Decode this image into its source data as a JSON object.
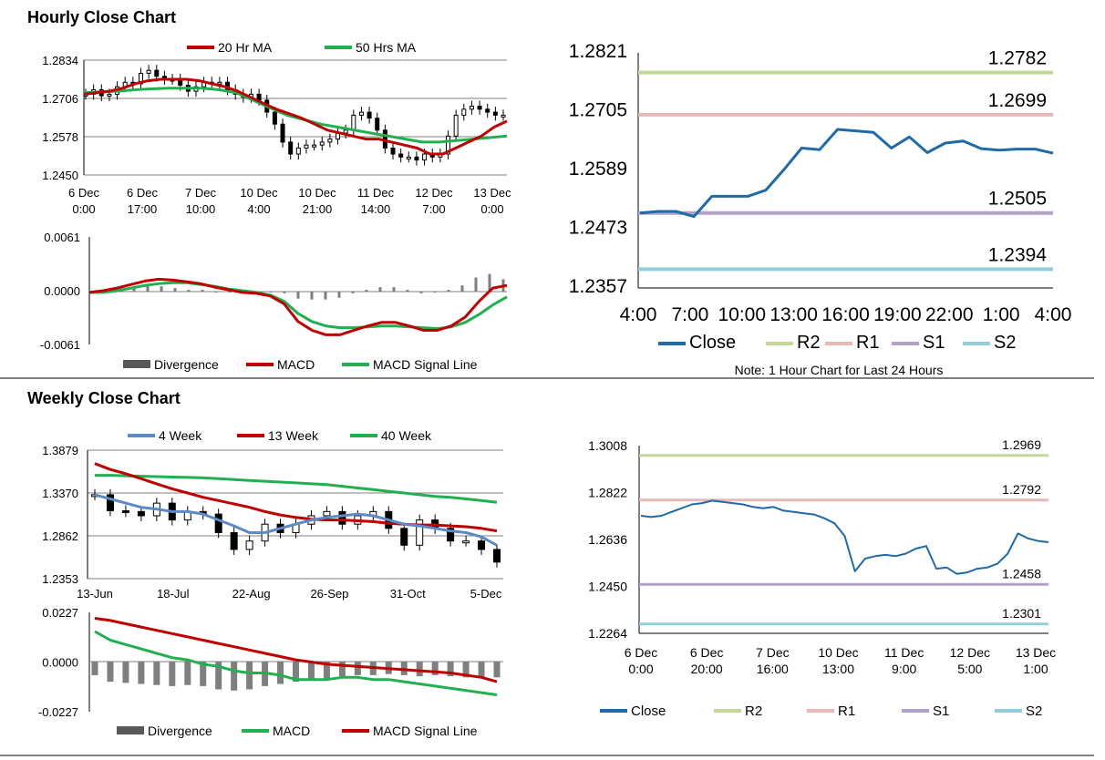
{
  "hourly_title": "Hourly Close Chart",
  "weekly_title": "Weekly Close Chart",
  "colors": {
    "ma20": "#c00000",
    "ma50": "#20b050",
    "price": "#000000",
    "close": "#1f6aa8",
    "r2": "#c4d79b",
    "r1": "#e6b9b8",
    "s1": "#b3a2c7",
    "s2": "#93cddd",
    "divergence": "#595959",
    "week4": "#5b8ac6",
    "week13": "#c00000",
    "week40": "#20b050",
    "grid": "#808080"
  },
  "chart_data": [
    {
      "id": "hourly_price",
      "type": "candlestick",
      "legend": [
        "20 Hr MA",
        "50 Hrs MA"
      ],
      "ylim": [
        1.245,
        1.2834
      ],
      "yticks": [
        "1.2834",
        "1.2706",
        "1.2578",
        "1.2450"
      ],
      "xticks": [
        [
          "6 Dec",
          "0:00"
        ],
        [
          "6 Dec",
          "17:00"
        ],
        [
          "7 Dec",
          "10:00"
        ],
        [
          "10 Dec",
          "4:00"
        ],
        [
          "10 Dec",
          "21:00"
        ],
        [
          "11 Dec",
          "14:00"
        ],
        [
          "12 Dec",
          "7:00"
        ],
        [
          "13 Dec",
          "0:00"
        ]
      ],
      "close": [
        1.272,
        1.2735,
        1.2715,
        1.272,
        1.2745,
        1.276,
        1.2755,
        1.279,
        1.28,
        1.278,
        1.277,
        1.277,
        1.275,
        1.273,
        1.2745,
        1.276,
        1.2755,
        1.276,
        1.2735,
        1.272,
        1.271,
        1.272,
        1.27,
        1.266,
        1.262,
        1.256,
        1.252,
        1.254,
        1.255,
        1.255,
        1.256,
        1.257,
        1.259,
        1.26,
        1.265,
        1.266,
        1.264,
        1.26,
        1.254,
        1.252,
        1.251,
        1.251,
        1.25,
        1.252,
        1.251,
        1.252,
        1.258,
        1.265,
        1.267,
        1.268,
        1.267,
        1.266,
        1.265,
        1.265
      ],
      "ma20": [
        1.272,
        1.2725,
        1.273,
        1.274,
        1.2755,
        1.2765,
        1.277,
        1.277,
        1.277,
        1.2765,
        1.2755,
        1.2745,
        1.273,
        1.271,
        1.269,
        1.267,
        1.2655,
        1.264,
        1.262,
        1.26,
        1.259,
        1.258,
        1.257,
        1.257,
        1.256,
        1.255,
        1.254,
        1.252,
        1.252,
        1.254,
        1.256,
        1.258,
        1.261,
        1.263
      ],
      "ma50": [
        1.2725,
        1.2728,
        1.273,
        1.2735,
        1.2738,
        1.274,
        1.274,
        1.274,
        1.2735,
        1.2725,
        1.27,
        1.2675,
        1.265,
        1.2635,
        1.262,
        1.261,
        1.26,
        1.259,
        1.258,
        1.257,
        1.256,
        1.256,
        1.2565,
        1.257,
        1.2575,
        1.258
      ]
    },
    {
      "id": "hourly_macd",
      "type": "macd",
      "legend": [
        "Divergence",
        "MACD",
        "MACD Signal Line"
      ],
      "ylim": [
        -0.0061,
        0.0061
      ],
      "yticks": [
        "0.0061",
        "0.0000",
        "-0.0061"
      ],
      "macd": [
        -0.0002,
        0.0,
        0.0003,
        0.0007,
        0.0011,
        0.0013,
        0.0012,
        0.001,
        0.0008,
        0.0004,
        0.0001,
        -0.0002,
        -0.0003,
        -0.0006,
        -0.0015,
        -0.0035,
        -0.0045,
        -0.005,
        -0.005,
        -0.0045,
        -0.004,
        -0.0036,
        -0.0036,
        -0.004,
        -0.0045,
        -0.0045,
        -0.004,
        -0.003,
        -0.0012,
        0.0003,
        0.0006
      ],
      "signal": [
        -0.0002,
        -0.0002,
        0.0,
        0.0003,
        0.0006,
        0.0008,
        0.0009,
        0.0009,
        0.0007,
        0.0005,
        0.0002,
        0.0,
        -0.0002,
        -0.0005,
        -0.0012,
        -0.0026,
        -0.0035,
        -0.004,
        -0.0042,
        -0.0042,
        -0.0041,
        -0.004,
        -0.004,
        -0.0041,
        -0.0042,
        -0.0043,
        -0.0041,
        -0.0036,
        -0.0027,
        -0.0016,
        -0.0007
      ]
    },
    {
      "id": "hourly_24h",
      "type": "line",
      "legend": [
        "Close",
        "R2",
        "R1",
        "S1",
        "S2"
      ],
      "ylim": [
        1.2357,
        1.2821
      ],
      "yticks": [
        "1.2821",
        "1.2705",
        "1.2589",
        "1.2473",
        "1.2357"
      ],
      "xticks": [
        "4:00",
        "7:00",
        "10:00",
        "13:00",
        "16:00",
        "19:00",
        "22:00",
        "1:00",
        "4:00"
      ],
      "levels": {
        "R2": "1.2782",
        "R1": "1.2699",
        "S1": "1.2505",
        "S2": "1.2394"
      },
      "close": [
        1.2505,
        1.2508,
        1.2508,
        1.2498,
        1.2538,
        1.2538,
        1.2538,
        1.255,
        1.259,
        1.2633,
        1.263,
        1.267,
        1.2667,
        1.2664,
        1.2633,
        1.2655,
        1.2624,
        1.2643,
        1.2647,
        1.2632,
        1.2629,
        1.2631,
        1.2631,
        1.2623
      ],
      "note": "Note: 1 Hour Chart for Last 24 Hours"
    },
    {
      "id": "weekly_price",
      "type": "candlestick",
      "legend": [
        "4 Week",
        "13 Week",
        "40 Week"
      ],
      "ylim": [
        1.2353,
        1.3879
      ],
      "yticks": [
        "1.3879",
        "1.3370",
        "1.2862",
        "1.2353"
      ],
      "xticks": [
        "13-Jun",
        "18-Jul",
        "22-Aug",
        "26-Sep",
        "31-Oct",
        "5-Dec"
      ],
      "close": [
        1.335,
        1.316,
        1.315,
        1.31,
        1.325,
        1.305,
        1.315,
        1.312,
        1.29,
        1.27,
        1.28,
        1.3,
        1.29,
        1.3,
        1.31,
        1.315,
        1.3,
        1.31,
        1.315,
        1.295,
        1.275,
        1.305,
        1.295,
        1.28,
        1.28,
        1.27,
        1.255
      ],
      "week4": [
        1.335,
        1.33,
        1.325,
        1.32,
        1.318,
        1.315,
        1.315,
        1.312,
        1.305,
        1.298,
        1.29,
        1.29,
        1.295,
        1.3,
        1.305,
        1.308,
        1.31,
        1.312,
        1.31,
        1.305,
        1.3,
        1.298,
        1.295,
        1.292,
        1.29,
        1.285,
        1.275
      ],
      "week13": [
        1.372,
        1.365,
        1.36,
        1.354,
        1.348,
        1.342,
        1.337,
        1.332,
        1.328,
        1.324,
        1.32,
        1.315,
        1.311,
        1.308,
        1.306,
        1.305,
        1.305,
        1.304,
        1.303,
        1.301,
        1.3,
        1.299,
        1.299,
        1.298,
        1.297,
        1.295,
        1.292
      ],
      "week40": [
        1.358,
        1.358,
        1.3575,
        1.357,
        1.3565,
        1.356,
        1.3555,
        1.355,
        1.354,
        1.353,
        1.352,
        1.351,
        1.35,
        1.349,
        1.348,
        1.347,
        1.345,
        1.343,
        1.341,
        1.339,
        1.337,
        1.335,
        1.333,
        1.332,
        1.33,
        1.328,
        1.326
      ]
    },
    {
      "id": "weekly_macd",
      "type": "macd",
      "legend": [
        "Divergence",
        "MACD",
        "MACD Signal Line"
      ],
      "ylim": [
        -0.0227,
        0.0227
      ],
      "yticks": [
        "0.0227",
        "0.0000",
        "-0.0227"
      ],
      "macd": [
        0.014,
        0.01,
        0.008,
        0.006,
        0.004,
        0.002,
        0.001,
        -0.001,
        -0.002,
        -0.004,
        -0.005,
        -0.005,
        -0.006,
        -0.008,
        -0.008,
        -0.008,
        -0.007,
        -0.007,
        -0.008,
        -0.008,
        -0.009,
        -0.01,
        -0.011,
        -0.012,
        -0.013,
        -0.014,
        -0.015
      ],
      "signal": [
        0.02,
        0.019,
        0.0175,
        0.016,
        0.0145,
        0.013,
        0.0115,
        0.01,
        0.0085,
        0.007,
        0.0055,
        0.004,
        0.0025,
        0.001,
        0.0,
        -0.001,
        -0.0015,
        -0.002,
        -0.0025,
        -0.003,
        -0.0035,
        -0.004,
        -0.0045,
        -0.005,
        -0.006,
        -0.007,
        -0.009
      ],
      "divergence": [
        -0.006,
        -0.009,
        -0.0095,
        -0.01,
        -0.0105,
        -0.011,
        -0.0105,
        -0.011,
        -0.0125,
        -0.013,
        -0.0125,
        -0.011,
        -0.01,
        -0.009,
        -0.0085,
        -0.0075,
        -0.0065,
        -0.006,
        -0.006,
        -0.0055,
        -0.006,
        -0.0065,
        -0.006,
        -0.0065,
        -0.007,
        -0.007,
        -0.007
      ]
    },
    {
      "id": "hourly_week",
      "type": "line",
      "legend": [
        "Close",
        "R2",
        "R1",
        "S1",
        "S2"
      ],
      "ylim": [
        1.2264,
        1.3008
      ],
      "yticks": [
        "1.3008",
        "1.2822",
        "1.2636",
        "1.2450",
        "1.2264"
      ],
      "xticks": [
        [
          "6 Dec",
          "0:00"
        ],
        [
          "6 Dec",
          "20:00"
        ],
        [
          "7 Dec",
          "16:00"
        ],
        [
          "10 Dec",
          "13:00"
        ],
        [
          "11 Dec",
          "9:00"
        ],
        [
          "12 Dec",
          "5:00"
        ],
        [
          "13 Dec",
          "1:00"
        ]
      ],
      "levels": {
        "R2": "1.2969",
        "R1": "1.2792",
        "S1": "1.2458",
        "S2": "1.2301"
      },
      "close": [
        1.273,
        1.2725,
        1.273,
        1.2745,
        1.276,
        1.2775,
        1.278,
        1.279,
        1.2785,
        1.278,
        1.2775,
        1.2765,
        1.276,
        1.2765,
        1.275,
        1.2745,
        1.274,
        1.2735,
        1.272,
        1.27,
        1.265,
        1.251,
        1.256,
        1.257,
        1.2575,
        1.257,
        1.258,
        1.26,
        1.261,
        1.252,
        1.2525,
        1.25,
        1.2505,
        1.252,
        1.2525,
        1.254,
        1.258,
        1.266,
        1.264,
        1.263,
        1.2625
      ]
    }
  ]
}
